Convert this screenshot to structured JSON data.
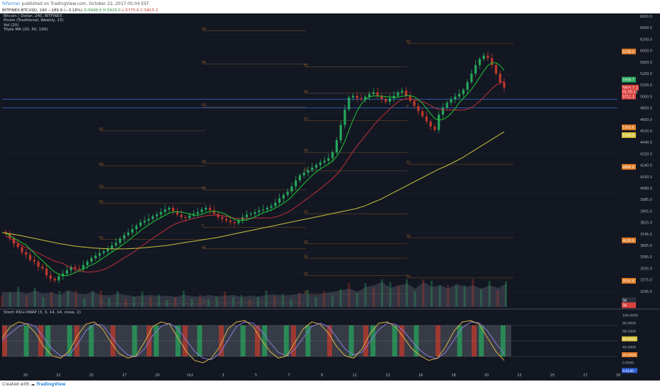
{
  "header": {
    "author": "fxfarmer",
    "published": "published on TradingView.com, October 22, 2017 05:04 EST"
  },
  "symbol_bar": {
    "symbol": "BITFINEX:BTCUSD, 240",
    "change": "−189.9 (−3.16%)",
    "o": "O:5908.5",
    "h": "H:5920.0",
    "l": "L:5775.0",
    "c": "C:5815.2"
  },
  "legend": [
    "Bitcoin / Dollar, 240, BITFINEX",
    "Pivots (Traditional, Weekly, 15)",
    "Vol (20)",
    "Triple MA (20, 50, 100)"
  ],
  "stoch_label": "Stoch RSI+VWAP (3, 3, 14, 14, close, 2)",
  "footer": {
    "created_with": "Created with",
    "brand": "TradingView"
  },
  "colors": {
    "background": "#131722",
    "up": "#26a65b",
    "down": "#c0392b",
    "ma20": "#1fc832",
    "ma50": "#c0303a",
    "ma100": "#c9c23a",
    "pivot": "#a36a2a",
    "stoch_k": "#d8b24a",
    "stoch_d": "#8a7ad8"
  },
  "chart_data": {
    "type": "candlestick",
    "y_ticks": [
      "6600.0",
      "6400.0",
      "6200.0",
      "6000.0",
      "5600.0",
      "5200.0",
      "5100.0",
      "5000.0",
      "4800.0",
      "4600.0",
      "4520.0",
      "4440.0",
      "4320.0",
      "4240.0",
      "4160.0",
      "4080.0",
      "3985.0",
      "3905.0",
      "3825.0",
      "3745.0",
      "3665.0",
      "3585.0",
      "3505.0",
      "3375.0",
      "3295.0"
    ],
    "price_tags": [
      {
        "label": "6238.0",
        "value": 6238,
        "color": "#e07b25"
      },
      {
        "label": "5908.7",
        "value": 5908.7,
        "color": "#26a65b"
      },
      {
        "label": "BTCUSD",
        "value": 5815.2,
        "color": "#d9433f"
      },
      {
        "label": "5815.2",
        "value": 5815.2,
        "color": "#d9433f"
      },
      {
        "label": "01:55:22",
        "value": 5770,
        "color": "#d9433f"
      },
      {
        "label": "5711.2",
        "value": 5711.2,
        "color": "#d9433f"
      },
      {
        "label": "5350.6",
        "value": 5350.6,
        "color": "#e07b25"
      },
      {
        "label": "5259.9",
        "value": 5259.9,
        "color": "#d8c23a"
      },
      {
        "label": "4888.8",
        "value": 4888.8,
        "color": "#e07b25"
      },
      {
        "label": "4028.8",
        "value": 4028.8,
        "color": "#e07b25"
      },
      {
        "label": "3555.8",
        "value": 3555.8,
        "color": "#e07b25"
      },
      {
        "label": "5K",
        "value": 3330,
        "color": "#2a2f3d"
      },
      {
        "label": "5K",
        "value": 3270,
        "color": "#d9433f"
      }
    ],
    "x_ticks": [
      "20",
      "22",
      "25",
      "27",
      "29",
      "Oct",
      "3",
      "5",
      "7",
      "9",
      "11",
      "13",
      "16",
      "18",
      "20",
      "23",
      "25",
      "27",
      "30"
    ],
    "ylim": [
      3250,
      6650
    ],
    "pivots": [
      {
        "week": 0,
        "levels": [
          [
            "R5",
            5310
          ],
          [
            "R4",
            4900
          ],
          [
            "R3",
            4640
          ],
          [
            "R2",
            4460
          ],
          [
            "R1",
            4040
          ],
          [
            "S1",
            3290
          ]
        ]
      },
      {
        "week": 1,
        "levels": [
          [
            "R6",
            6480
          ],
          [
            "R4",
            6090
          ],
          [
            "R3",
            5590
          ],
          [
            "R2",
            4930
          ],
          [
            "R1",
            4620
          ],
          [
            "P",
            4180
          ],
          [
            "S1",
            3930
          ],
          [
            "S3",
            3300
          ]
        ]
      },
      {
        "week": 2,
        "levels": [
          [
            "R5",
            6060
          ],
          [
            "R4",
            5750
          ],
          [
            "R3",
            5430
          ],
          [
            "R2",
            5060
          ],
          [
            "R1",
            4840
          ],
          [
            "S1",
            4340
          ],
          [
            "S2",
            3990
          ],
          [
            "S3",
            3820
          ],
          [
            "S4",
            3620
          ],
          [
            "S5",
            3400
          ]
        ]
      },
      {
        "week": 3,
        "levels": [
          [
            "R1",
            6330
          ],
          [
            "P",
            5580
          ],
          [
            "S1",
            4920
          ],
          [
            "S2",
            4060
          ],
          [
            "S3",
            3590
          ]
        ]
      }
    ],
    "close_series": [
      4110,
      4060,
      3990,
      3950,
      3890,
      3860,
      3800,
      3780,
      3720,
      3700,
      3620,
      3580,
      3560,
      3610,
      3640,
      3680,
      3720,
      3700,
      3690,
      3740,
      3780,
      3820,
      3850,
      3880,
      3900,
      3930,
      3970,
      4000,
      4050,
      4090,
      4120,
      4160,
      4200,
      4240,
      4260,
      4280,
      4310,
      4330,
      4360,
      4390,
      4410,
      4370,
      4330,
      4300,
      4290,
      4320,
      4340,
      4360,
      4390,
      4410,
      4380,
      4340,
      4300,
      4280,
      4260,
      4240,
      4230,
      4260,
      4300,
      4330,
      4340,
      4360,
      4380,
      4390,
      4410,
      4430,
      4470,
      4520,
      4560,
      4600,
      4660,
      4730,
      4790,
      4820,
      4850,
      4880,
      4910,
      4940,
      4960,
      4990,
      5060,
      5200,
      5380,
      5560,
      5700,
      5720,
      5690,
      5680,
      5710,
      5740,
      5760,
      5720,
      5680,
      5650,
      5690,
      5720,
      5760,
      5780,
      5720,
      5660,
      5600,
      5540,
      5480,
      5420,
      5360,
      5320,
      5500,
      5580,
      5640,
      5680,
      5710,
      5740,
      5790,
      5880,
      5980,
      6080,
      6150,
      6190,
      6160,
      6080,
      5980,
      5880,
      5815
    ],
    "ma100": [
      4120,
      4105,
      4090,
      4070,
      4050,
      4030,
      4010,
      3990,
      3975,
      3960,
      3950,
      3940,
      3935,
      3930,
      3928,
      3930,
      3935,
      3940,
      3950,
      3960,
      3970,
      3985,
      4000,
      4015,
      4030,
      4045,
      4060,
      4080,
      4100,
      4120,
      4140,
      4160,
      4180,
      4200,
      4220,
      4240,
      4260,
      4280,
      4300,
      4320,
      4340,
      4360,
      4380,
      4400,
      4430,
      4470,
      4510,
      4560,
      4610,
      4660,
      4710,
      4760,
      4810,
      4860,
      4900,
      4950,
      5000,
      5060,
      5120,
      5180,
      5240,
      5300
    ],
    "volume_series": [
      0.3,
      0.28,
      0.3,
      0.25,
      0.33,
      0.25,
      0.28,
      0.2,
      0.35,
      0.25,
      0.22,
      0.3,
      0.2,
      0.18,
      0.25,
      0.2,
      0.15,
      0.18,
      0.2,
      0.16,
      0.18,
      0.14,
      0.2,
      0.16,
      0.15,
      0.2,
      0.16,
      0.18,
      0.2,
      0.14,
      0.18,
      0.15,
      0.2,
      0.22,
      0.18,
      0.2,
      0.25,
      0.22,
      0.2,
      0.25,
      0.3,
      0.35,
      0.4,
      0.3,
      0.45,
      0.5,
      0.6,
      0.42,
      0.5,
      0.55,
      0.4,
      0.6,
      0.45,
      0.5,
      0.4,
      0.55,
      0.45,
      0.5,
      0.4,
      0.5,
      0.42,
      0.55
    ],
    "stoch_k": [
      60,
      85,
      95,
      90,
      70,
      40,
      20,
      15,
      30,
      65,
      90,
      95,
      80,
      50,
      25,
      15,
      20,
      50,
      85,
      95,
      90,
      60,
      30,
      10,
      5,
      15,
      40,
      80,
      95,
      98,
      85,
      55,
      30,
      15,
      20,
      50,
      80,
      95,
      90,
      70,
      40,
      20,
      15,
      35,
      70,
      92,
      95,
      85,
      60,
      35,
      20,
      10,
      15,
      40,
      75,
      95,
      98,
      90,
      60,
      30,
      10
    ],
    "stoch_d": [
      55,
      70,
      85,
      92,
      85,
      60,
      35,
      20,
      22,
      45,
      75,
      90,
      88,
      65,
      40,
      22,
      18,
      35,
      65,
      85,
      92,
      80,
      55,
      30,
      15,
      12,
      25,
      55,
      85,
      95,
      92,
      75,
      50,
      28,
      20,
      35,
      60,
      85,
      92,
      85,
      60,
      35,
      22,
      28,
      52,
      78,
      92,
      90,
      75,
      52,
      32,
      18,
      14,
      28,
      55,
      82,
      95,
      93,
      75,
      48,
      25
    ],
    "stoch_ticks": [
      "100.0000",
      "80.0000",
      "68.5000",
      "49.4231",
      "40.0000",
      "20.0098",
      "0.0000",
      "0.0180"
    ]
  }
}
